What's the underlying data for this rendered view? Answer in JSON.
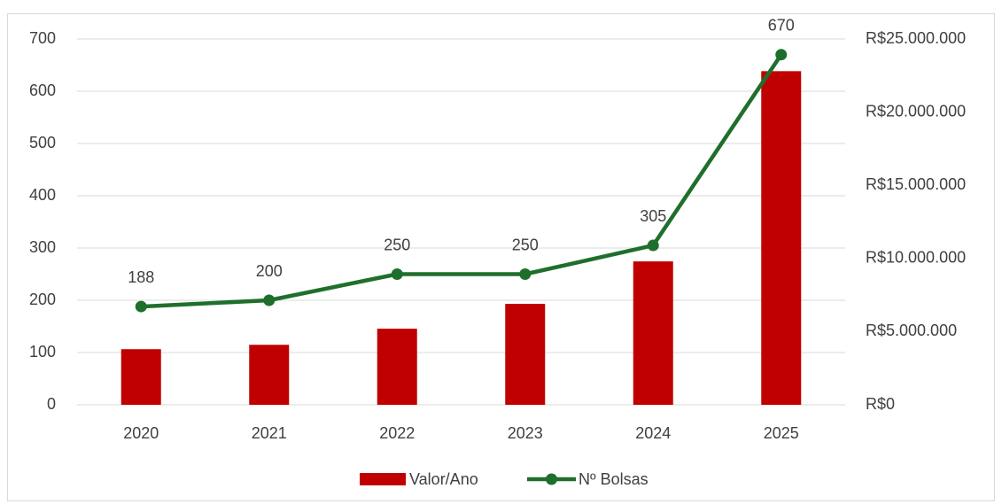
{
  "chart_data": {
    "type": "bar",
    "categories": [
      "2020",
      "2021",
      "2022",
      "2023",
      "2024",
      "2025"
    ],
    "series": [
      {
        "name": "Valor/Ano",
        "type": "bar",
        "axis": "y2",
        "color": "#c00000",
        "values": [
          3800000,
          4100000,
          5200000,
          6900000,
          9800000,
          22800000
        ]
      },
      {
        "name": "Nº Bolsas",
        "type": "line",
        "axis": "y",
        "color": "#1f6f2c",
        "values": [
          188,
          200,
          250,
          250,
          305,
          670
        ]
      }
    ],
    "ylim": [
      0,
      700
    ],
    "yticks": [
      0,
      100,
      200,
      300,
      400,
      500,
      600,
      700
    ],
    "y2lim": [
      0,
      25000000
    ],
    "y2ticks": [
      {
        "value": 0,
        "label": "R$0"
      },
      {
        "value": 5000000,
        "label": "R$5.000.000"
      },
      {
        "value": 10000000,
        "label": "R$10.000.000"
      },
      {
        "value": 15000000,
        "label": "R$15.000.000"
      },
      {
        "value": 20000000,
        "label": "R$20.000.000"
      },
      {
        "value": 25000000,
        "label": "R$25.000.000"
      }
    ],
    "grid": true,
    "legend": "bottom"
  }
}
